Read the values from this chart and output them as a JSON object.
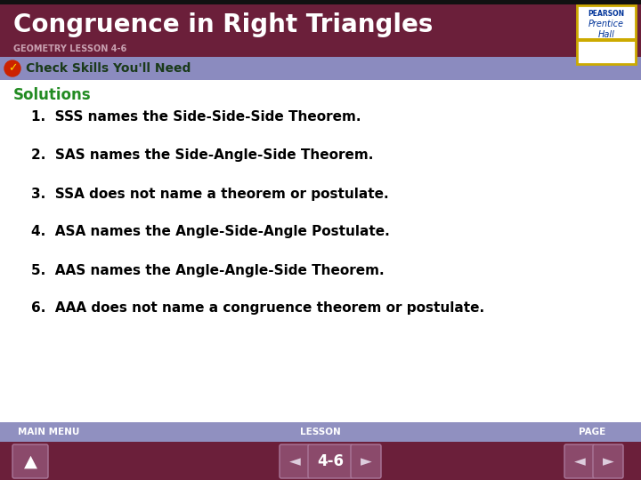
{
  "title": "Congruence in Right Triangles",
  "subtitle": "GEOMETRY LESSON 4-6",
  "header_bg": "#6B1F3A",
  "header_text_color": "#FFFFFF",
  "subtitle_color": "#C8A0B0",
  "banner_bg": "#8B8BBF",
  "banner_text": "Check Skills You'll Need",
  "banner_text_color": "#1A3A1A",
  "body_bg": "#FFFFFF",
  "solutions_label": "Solutions",
  "solutions_color": "#228B22",
  "items": [
    "1.  SSS names the Side-Side-Side Theorem.",
    "2.  SAS names the Side-Angle-Side Theorem.",
    "3.  SSA does not name a theorem or postulate.",
    "4.  ASA names the Angle-Side-Angle Postulate.",
    "5.  AAS names the Angle-Angle-Side Theorem.",
    "6.  AAA does not name a congruence theorem or postulate."
  ],
  "item_color": "#000000",
  "footer_bg1": "#9090C0",
  "footer_bg2": "#6B1F3A",
  "footer_text_color": "#FFFFFF",
  "footer_labels": [
    "MAIN MENU",
    "LESSON",
    "PAGE"
  ],
  "lesson_number": "4-6",
  "pearson_box_color": "#FFFFFF",
  "pearson_text_color": "#003399",
  "gold_color": "#CCAA00",
  "btn_face": "#8B4A6B",
  "btn_edge": "#AA7799",
  "btn_arrow_color": "#DDCCDD"
}
